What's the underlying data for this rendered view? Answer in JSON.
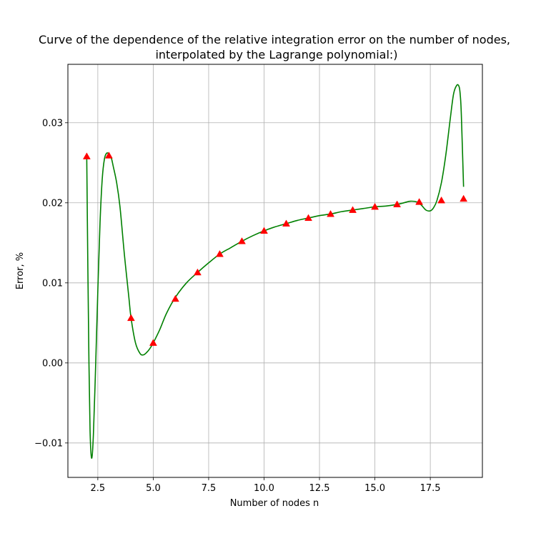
{
  "chart_data": {
    "type": "line",
    "title_line1": "Curve of the dependence of the relative integration error on the number of nodes,",
    "title_line2": "interpolated by the Lagrange polynomial:)",
    "xlabel": "Number of nodes n",
    "ylabel": "Error, %",
    "xlim": [
      1.15,
      19.85
    ],
    "ylim": [
      -0.0143,
      0.0373
    ],
    "xticks": [
      2.5,
      5.0,
      7.5,
      10.0,
      12.5,
      15.0,
      17.5
    ],
    "xtick_labels": [
      "2.5",
      "5.0",
      "7.5",
      "10.0",
      "12.5",
      "15.0",
      "17.5"
    ],
    "yticks": [
      -0.01,
      0.0,
      0.01,
      0.02,
      0.03
    ],
    "ytick_labels": [
      "−0.01",
      "0.00",
      "0.01",
      "0.02",
      "0.03"
    ],
    "grid": true,
    "series": [
      {
        "marker": "triangle",
        "color": "#ff0000",
        "x": [
          2,
          3,
          4,
          5,
          6,
          7,
          8,
          9,
          10,
          11,
          12,
          13,
          14,
          15,
          16,
          17,
          18,
          19
        ],
        "y": [
          0.0258,
          0.0259,
          0.0056,
          0.0025,
          0.008,
          0.0113,
          0.0136,
          0.0152,
          0.0165,
          0.0174,
          0.0181,
          0.0186,
          0.0191,
          0.0195,
          0.0198,
          0.0201,
          0.0203,
          0.0205
        ]
      },
      {
        "marker": "none",
        "color": "#008000",
        "x": [
          2.0,
          2.05,
          2.1,
          2.15,
          2.22,
          2.3,
          2.4,
          2.5,
          2.6,
          2.7,
          2.8,
          2.9,
          3.0,
          3.1,
          3.2,
          3.35,
          3.5,
          3.7,
          3.9,
          4.0,
          4.2,
          4.4,
          4.55,
          4.7,
          4.85,
          5.0,
          5.3,
          5.6,
          6.0,
          6.5,
          7.0,
          7.5,
          8.0,
          8.5,
          9.0,
          9.5,
          10.0,
          10.5,
          11.0,
          11.5,
          12.0,
          12.5,
          13.0,
          13.5,
          14.0,
          14.5,
          15.0,
          15.5,
          16.0,
          16.3,
          16.6,
          16.9,
          17.1,
          17.3,
          17.5,
          17.65,
          17.8,
          18.0,
          18.2,
          18.4,
          18.55,
          18.7,
          18.8,
          18.85,
          18.9,
          19.0
        ],
        "y": [
          0.0258,
          0.012,
          0.0,
          -0.0085,
          -0.0119,
          -0.009,
          -0.0005,
          0.009,
          0.0175,
          0.023,
          0.0255,
          0.0262,
          0.0261,
          0.0257,
          0.0245,
          0.0225,
          0.0195,
          0.0135,
          0.0082,
          0.0056,
          0.0025,
          0.0012,
          0.001,
          0.0013,
          0.0018,
          0.0025,
          0.0042,
          0.0062,
          0.0082,
          0.01,
          0.0113,
          0.0125,
          0.0136,
          0.0144,
          0.0152,
          0.0159,
          0.0165,
          0.017,
          0.0174,
          0.0178,
          0.0181,
          0.0184,
          0.0186,
          0.0189,
          0.0191,
          0.0193,
          0.0195,
          0.0196,
          0.0198,
          0.02,
          0.0202,
          0.0201,
          0.0197,
          0.0191,
          0.019,
          0.0194,
          0.0203,
          0.0225,
          0.026,
          0.0305,
          0.0336,
          0.0347,
          0.0345,
          0.0335,
          0.031,
          0.022
        ]
      }
    ]
  }
}
